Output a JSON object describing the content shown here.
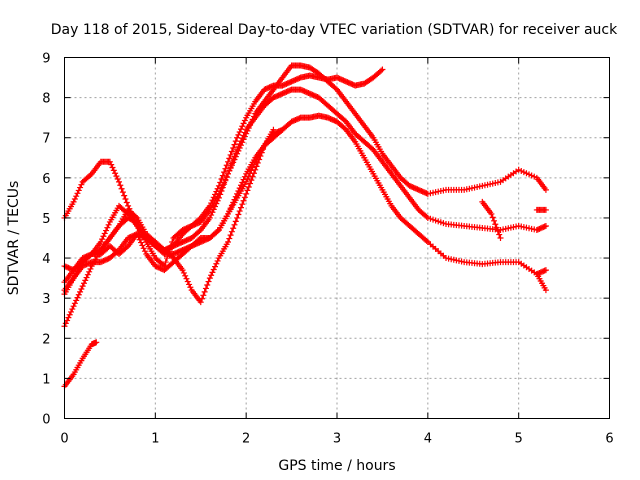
{
  "chart_data": {
    "type": "line",
    "title": "Day 118 of 2015, Sidereal Day-to-day VTEC variation (SDTVAR) for receiver auck",
    "xlabel": "GPS time / hours",
    "ylabel": "SDTVAR / TECUs",
    "xlim": [
      0,
      6
    ],
    "ylim": [
      0,
      9
    ],
    "xticks": [
      "0",
      "1",
      "2",
      "3",
      "4",
      "5",
      "6"
    ],
    "yticks": [
      "0",
      "1",
      "2",
      "3",
      "4",
      "5",
      "6",
      "7",
      "8",
      "9"
    ],
    "grid": true,
    "legend": "none",
    "marker": "plus",
    "color": "#ff0000",
    "series": [
      {
        "name": "series-1",
        "x": [
          0.0,
          0.1,
          0.2,
          0.3,
          0.35
        ],
        "y": [
          0.8,
          1.1,
          1.5,
          1.85,
          1.9
        ]
      },
      {
        "name": "series-2",
        "x": [
          0.0,
          0.1,
          0.2,
          0.3,
          0.4,
          0.5,
          0.6,
          0.7,
          0.8,
          0.9,
          1.0,
          1.1,
          1.2,
          1.3,
          1.4,
          1.5,
          1.6,
          1.7,
          1.8,
          1.9,
          2.0,
          2.1,
          2.2,
          2.3,
          2.4,
          2.5,
          2.6,
          2.7,
          2.8,
          2.9,
          3.0,
          3.1,
          3.2,
          3.3,
          3.4,
          3.5,
          3.6,
          3.7,
          3.8,
          3.9,
          4.0,
          4.2,
          4.4,
          4.6,
          4.8,
          5.0,
          5.2,
          5.3
        ],
        "y": [
          5.0,
          5.4,
          5.9,
          6.1,
          6.4,
          6.4,
          5.9,
          5.3,
          4.8,
          4.5,
          4.3,
          4.2,
          4.3,
          4.6,
          4.8,
          4.9,
          5.2,
          5.6,
          6.1,
          6.6,
          7.1,
          7.6,
          7.9,
          8.2,
          8.5,
          8.8,
          8.8,
          8.75,
          8.6,
          8.4,
          8.2,
          7.9,
          7.6,
          7.3,
          7.0,
          6.6,
          6.3,
          6.0,
          5.8,
          5.7,
          5.6,
          5.7,
          5.7,
          5.8,
          5.9,
          6.2,
          6.0,
          5.7
        ]
      },
      {
        "name": "series-3",
        "x": [
          0.0,
          0.1,
          0.2,
          0.3,
          0.4,
          0.5,
          0.6,
          0.7,
          0.8,
          0.9,
          1.0,
          1.1,
          1.2,
          1.3,
          1.4,
          1.5,
          1.6,
          1.7,
          1.8,
          1.9,
          2.0,
          2.1,
          2.2,
          2.3,
          2.4,
          2.5,
          2.6,
          2.7,
          2.8,
          2.9,
          3.0,
          3.1,
          3.2,
          3.3,
          3.4,
          3.5
        ],
        "y": [
          3.8,
          3.7,
          3.9,
          4.1,
          4.4,
          4.9,
          5.3,
          5.1,
          4.8,
          4.4,
          4.0,
          3.8,
          4.5,
          4.7,
          4.8,
          5.0,
          5.3,
          5.8,
          6.4,
          7.0,
          7.5,
          7.9,
          8.2,
          8.3,
          8.3,
          8.4,
          8.5,
          8.55,
          8.5,
          8.45,
          8.5,
          8.4,
          8.3,
          8.35,
          8.5,
          8.7
        ]
      },
      {
        "name": "series-4",
        "x": [
          0.0,
          0.1,
          0.2,
          0.3,
          0.4,
          0.5,
          0.6,
          0.7,
          0.8,
          0.9,
          1.0,
          1.1,
          1.2,
          1.3,
          1.4,
          1.5,
          1.6,
          1.7,
          1.8,
          1.9,
          2.0,
          2.1,
          2.2,
          2.3,
          2.4,
          2.5,
          2.6,
          2.7,
          2.8,
          2.9,
          3.0,
          3.1,
          3.2,
          3.3,
          3.4,
          3.5,
          3.6,
          3.7,
          3.8,
          3.9,
          4.0,
          4.2,
          4.4,
          4.6,
          4.8,
          5.0,
          5.2,
          5.3
        ],
        "y": [
          3.2,
          3.5,
          3.9,
          4.1,
          4.2,
          4.5,
          4.8,
          5.0,
          4.9,
          4.5,
          4.3,
          4.2,
          4.3,
          4.4,
          4.5,
          4.7,
          5.0,
          5.5,
          6.1,
          6.7,
          7.2,
          7.5,
          7.8,
          8.0,
          8.1,
          8.2,
          8.2,
          8.1,
          8.0,
          7.8,
          7.6,
          7.4,
          7.1,
          6.9,
          6.7,
          6.4,
          6.1,
          5.8,
          5.5,
          5.2,
          5.0,
          4.85,
          4.8,
          4.75,
          4.7,
          4.8,
          4.7,
          4.8
        ]
      },
      {
        "name": "series-5",
        "x": [
          0.0,
          0.1,
          0.2,
          0.3,
          0.4,
          0.5,
          0.6,
          0.7,
          0.8,
          0.9,
          1.0,
          1.1,
          1.2,
          1.3,
          1.4,
          1.5,
          1.6,
          1.7,
          1.8,
          1.9,
          2.0,
          2.1,
          2.2,
          2.3,
          2.4,
          2.5,
          2.6,
          2.7,
          2.8,
          2.9,
          3.0,
          3.1,
          3.2,
          3.3,
          3.4,
          3.5,
          3.6,
          3.7,
          3.8,
          3.9,
          4.0,
          4.2,
          4.4,
          4.6,
          4.8,
          5.0,
          5.2,
          5.3
        ],
        "y": [
          3.4,
          3.7,
          4.0,
          4.1,
          4.1,
          4.3,
          4.1,
          4.3,
          4.6,
          4.5,
          4.3,
          4.1,
          4.1,
          4.2,
          4.3,
          4.4,
          4.5,
          4.7,
          5.1,
          5.6,
          6.1,
          6.5,
          6.8,
          7.0,
          7.2,
          7.4,
          7.5,
          7.5,
          7.55,
          7.5,
          7.4,
          7.2,
          6.9,
          6.5,
          6.1,
          5.7,
          5.3,
          5.0,
          4.8,
          4.6,
          4.4,
          4.0,
          3.9,
          3.85,
          3.9,
          3.9,
          3.6,
          3.2
        ]
      },
      {
        "name": "series-6",
        "x": [
          0.0,
          0.1,
          0.2,
          0.3,
          0.4,
          0.5,
          0.6,
          0.7,
          0.8,
          0.9,
          1.0,
          1.1,
          1.2,
          1.3,
          1.4,
          1.5,
          1.6,
          1.7,
          1.8,
          1.9,
          2.0,
          2.1,
          2.2,
          2.3
        ],
        "y": [
          2.3,
          2.8,
          3.3,
          3.8,
          4.2,
          4.5,
          4.8,
          5.2,
          5.0,
          4.6,
          4.4,
          4.2,
          4.0,
          3.7,
          3.2,
          2.9,
          3.5,
          4.0,
          4.4,
          5.0,
          5.6,
          6.2,
          6.8,
          7.2
        ]
      },
      {
        "name": "series-7",
        "x": [
          0.0,
          0.1,
          0.2,
          0.3,
          0.4,
          0.5,
          0.6,
          0.7,
          0.8,
          0.9,
          1.0,
          1.1,
          1.2,
          1.3,
          1.4,
          1.5,
          1.6,
          1.7,
          1.8,
          1.9,
          2.0,
          2.1,
          2.2,
          2.3,
          2.4
        ],
        "y": [
          3.1,
          3.5,
          3.8,
          3.9,
          3.9,
          4.0,
          4.2,
          4.5,
          4.6,
          4.1,
          3.8,
          3.7,
          3.9,
          4.1,
          4.3,
          4.5,
          4.5,
          4.7,
          5.1,
          5.5,
          5.9,
          6.4,
          6.8,
          7.1,
          7.2
        ]
      },
      {
        "name": "series-8",
        "x": [
          4.6,
          4.7,
          4.8
        ],
        "y": [
          5.4,
          5.1,
          4.5
        ]
      },
      {
        "name": "series-9",
        "x": [
          5.2,
          5.3
        ],
        "y": [
          5.2,
          5.2
        ]
      },
      {
        "name": "series-10",
        "x": [
          5.2,
          5.3
        ],
        "y": [
          3.6,
          3.7
        ]
      }
    ]
  }
}
